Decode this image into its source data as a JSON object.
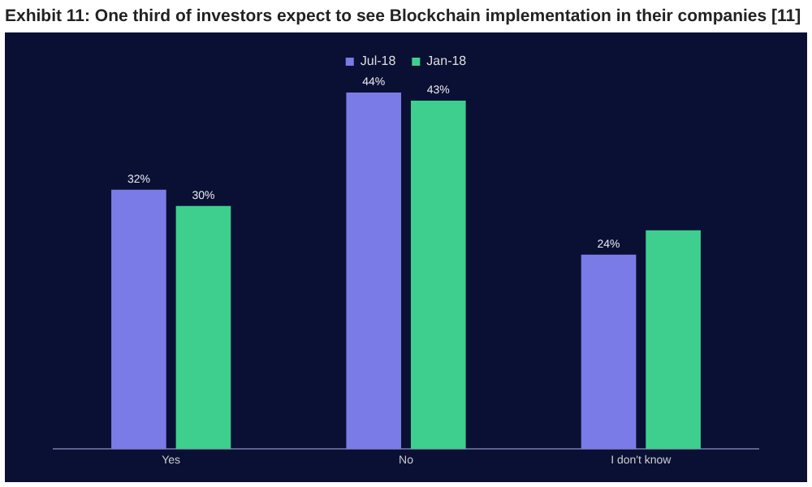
{
  "chart_data": {
    "type": "bar",
    "title": "Exhibit 11: One third of investors expect to see Blockchain implementation in their companies [11]",
    "categories": [
      "Yes",
      "No",
      "I don't know"
    ],
    "series": [
      {
        "name": "Jul-18",
        "color": "#7b7be8",
        "values": [
          32,
          44,
          24
        ],
        "value_labels": [
          "32%",
          "44%",
          "24%"
        ]
      },
      {
        "name": "Jan-18",
        "color": "#3ecf8e",
        "values": [
          30,
          43,
          27
        ],
        "value_labels": [
          "30%",
          "43%",
          null
        ]
      }
    ],
    "legend": "top",
    "grid": false,
    "tick_labels": "x"
  }
}
